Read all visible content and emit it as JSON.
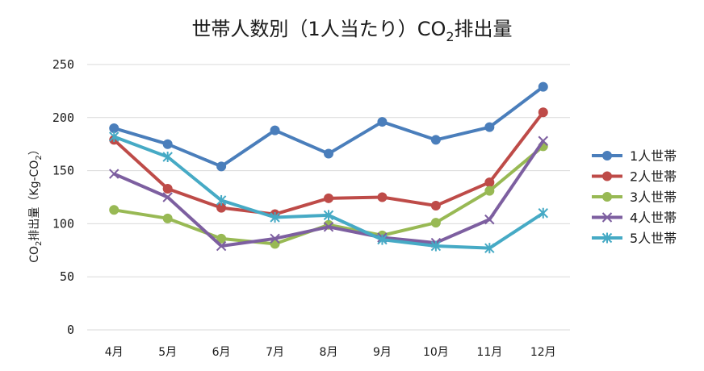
{
  "chart_data": {
    "type": "line",
    "title": {
      "prefix": "世帯人数別（1人当たり）CO",
      "sub": "2",
      "suffix": "排出量"
    },
    "ylabel": {
      "prefix": "CO",
      "sub1": "2",
      "mid": "排出量（Kg-CO",
      "sub2": "2",
      "suffix": "）"
    },
    "xlabel": "",
    "categories": [
      "4月",
      "5月",
      "6月",
      "7月",
      "8月",
      "9月",
      "10月",
      "11月",
      "12月"
    ],
    "ylim": [
      0,
      250
    ],
    "yticks": [
      0,
      50,
      100,
      150,
      200,
      250
    ],
    "grid": true,
    "legend_position": "right",
    "series": [
      {
        "name": "1人世帯",
        "color": "#4a7ebb",
        "marker": "circle",
        "values": [
          190,
          175,
          154,
          188,
          166,
          196,
          179,
          191,
          229
        ]
      },
      {
        "name": "2人世帯",
        "color": "#be4b48",
        "marker": "circle",
        "values": [
          179,
          133,
          115,
          109,
          124,
          125,
          117,
          139,
          205
        ]
      },
      {
        "name": "3人世帯",
        "color": "#98b954",
        "marker": "circle",
        "values": [
          113,
          105,
          86,
          81,
          99,
          89,
          101,
          131,
          173
        ]
      },
      {
        "name": "4人世帯",
        "color": "#7d5fa0",
        "marker": "x",
        "values": [
          147,
          125,
          79,
          86,
          97,
          87,
          82,
          104,
          178
        ]
      },
      {
        "name": "5人世帯",
        "color": "#46aac5",
        "marker": "star",
        "values": [
          182,
          163,
          122,
          106,
          108,
          85,
          79,
          77,
          110
        ]
      }
    ]
  }
}
